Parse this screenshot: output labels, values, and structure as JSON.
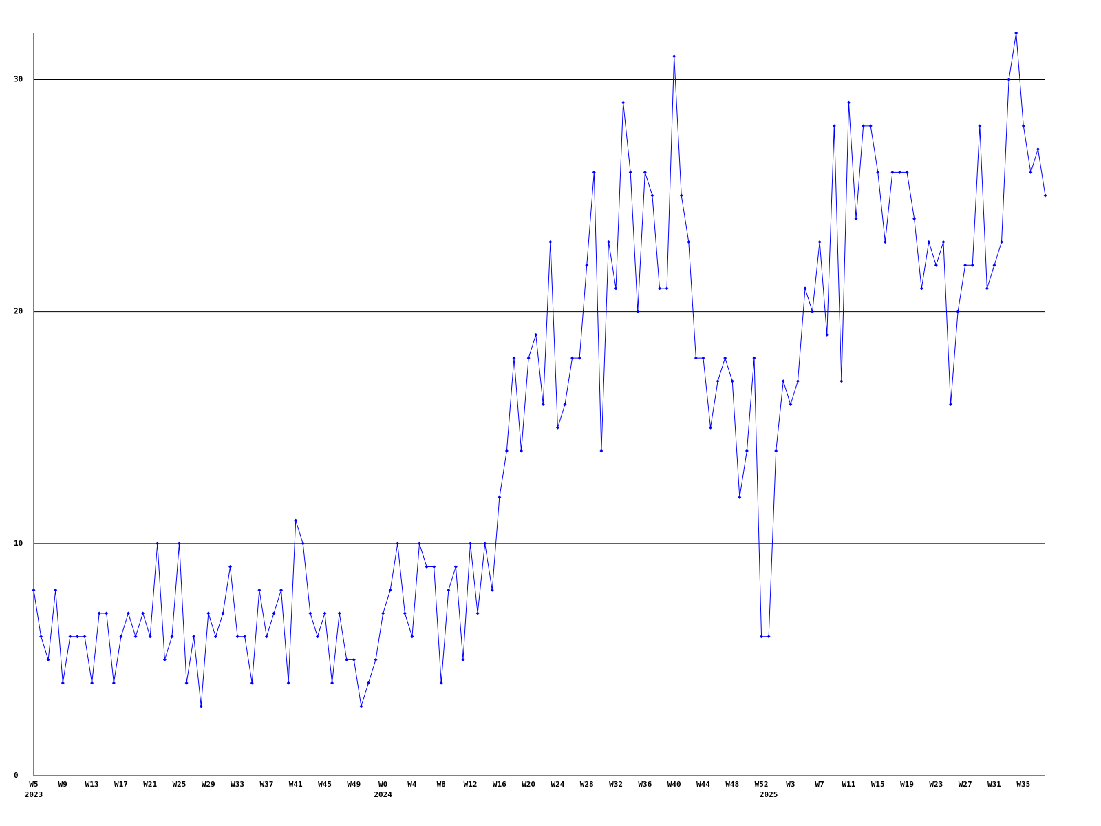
{
  "chart_data": {
    "type": "line",
    "color": "#0000ff",
    "grid": true,
    "ylim": [
      0,
      32
    ],
    "yticks": [
      0,
      10,
      20,
      30
    ],
    "categories": [
      "W5",
      null,
      null,
      null,
      "W9",
      null,
      null,
      null,
      "W13",
      null,
      null,
      null,
      "W17",
      null,
      null,
      null,
      "W21",
      null,
      null,
      null,
      "W25",
      null,
      null,
      null,
      "W29",
      null,
      null,
      null,
      "W33",
      null,
      null,
      null,
      "W37",
      null,
      null,
      null,
      "W41",
      null,
      null,
      null,
      "W45",
      null,
      null,
      null,
      "W49",
      null,
      null,
      null,
      "W0",
      null,
      null,
      null,
      "W4",
      null,
      null,
      null,
      "W8",
      null,
      null,
      null,
      "W12",
      null,
      null,
      null,
      "W16",
      null,
      null,
      null,
      "W20",
      null,
      null,
      null,
      "W24",
      null,
      null,
      null,
      "W28",
      null,
      null,
      null,
      "W32",
      null,
      null,
      null,
      "W36",
      null,
      null,
      null,
      "W40",
      null,
      null,
      null,
      "W44",
      null,
      null,
      null,
      "W48",
      null,
      null,
      null,
      "W52",
      null,
      null,
      null,
      "W3",
      null,
      null,
      null,
      "W7",
      null,
      null,
      null,
      "W11",
      null,
      null,
      null,
      "W15",
      null,
      null,
      null,
      "W19",
      null,
      null,
      null,
      "W23",
      null,
      null,
      null,
      "W27",
      null,
      null,
      null,
      "W31",
      null,
      null,
      null,
      "W35",
      null,
      null,
      null
    ],
    "categories_secondary": [
      "2023",
      null,
      null,
      null,
      null,
      null,
      null,
      null,
      null,
      null,
      null,
      null,
      null,
      null,
      null,
      null,
      null,
      null,
      null,
      null,
      null,
      null,
      null,
      null,
      null,
      null,
      null,
      null,
      null,
      null,
      null,
      null,
      null,
      null,
      null,
      null,
      null,
      null,
      null,
      null,
      null,
      null,
      null,
      null,
      null,
      null,
      null,
      null,
      "2024",
      null,
      null,
      null,
      null,
      null,
      null,
      null,
      null,
      null,
      null,
      null,
      null,
      null,
      null,
      null,
      null,
      null,
      null,
      null,
      null,
      null,
      null,
      null,
      null,
      null,
      null,
      null,
      null,
      null,
      null,
      null,
      null,
      null,
      null,
      null,
      null,
      null,
      null,
      null,
      null,
      null,
      null,
      null,
      null,
      null,
      null,
      null,
      null,
      null,
      null,
      null,
      null,
      "2025",
      null,
      null,
      null,
      null,
      null,
      null,
      null,
      null,
      null,
      null,
      null,
      null,
      null,
      null,
      null,
      null,
      null,
      null,
      null,
      null,
      null,
      null,
      null,
      null,
      null,
      null,
      null,
      null,
      null,
      null,
      null,
      null,
      null,
      null,
      null,
      null,
      null,
      null
    ],
    "values": [
      8,
      6,
      5,
      8,
      4,
      6,
      6,
      6,
      4,
      7,
      7,
      4,
      6,
      7,
      6,
      7,
      6,
      10,
      5,
      6,
      10,
      4,
      6,
      3,
      7,
      6,
      7,
      9,
      6,
      6,
      4,
      8,
      6,
      7,
      8,
      4,
      11,
      10,
      7,
      6,
      7,
      4,
      7,
      5,
      5,
      3,
      4,
      5,
      7,
      8,
      10,
      7,
      6,
      10,
      9,
      9,
      4,
      8,
      9,
      5,
      10,
      7,
      10,
      8,
      12,
      14,
      18,
      14,
      18,
      19,
      16,
      23,
      15,
      16,
      18,
      18,
      22,
      26,
      14,
      23,
      21,
      29,
      26,
      20,
      26,
      25,
      21,
      21,
      31,
      25,
      23,
      18,
      18,
      15,
      17,
      18,
      17,
      12,
      14,
      18,
      6,
      6,
      14,
      17,
      16,
      17,
      21,
      20,
      23,
      19,
      28,
      17,
      29,
      24,
      28,
      28,
      26,
      23,
      26,
      26,
      26,
      24,
      21,
      23,
      22,
      23,
      16,
      20,
      22,
      22,
      28,
      21,
      22,
      23,
      30,
      32,
      28,
      26,
      27,
      25
    ]
  }
}
